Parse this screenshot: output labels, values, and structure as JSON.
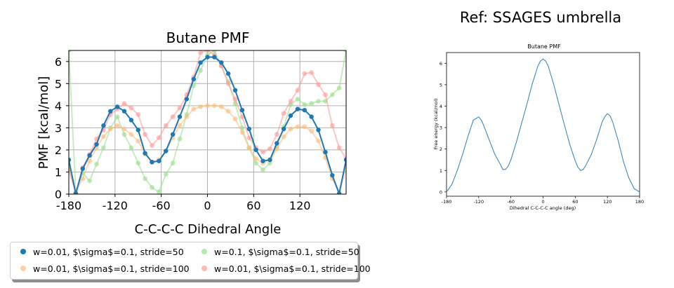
{
  "main_title": "Ref: SSAGES umbrella",
  "chart_data": [
    {
      "type": "line",
      "title": "Butane PMF",
      "xlabel": "C-C-C-C Dihedral Angle",
      "ylabel": "PMF [kcal/mol]",
      "xlim": [
        -180,
        180
      ],
      "ylim": [
        0,
        6.5
      ],
      "xticks": [
        -180,
        -120,
        -60,
        0,
        60,
        120
      ],
      "xtick_labels": [
        "-180",
        "-120",
        "-60",
        "0",
        "60",
        "120"
      ],
      "yticks": [
        0,
        1,
        2,
        3,
        4,
        5,
        6
      ],
      "grid": true,
      "legend_position": "below",
      "x": [
        -180,
        -171,
        -162,
        -153,
        -144,
        -135,
        -126,
        -117,
        -108,
        -99,
        -90,
        -81,
        -72,
        -63,
        -54,
        -45,
        -36,
        -27,
        -18,
        -9,
        0,
        9,
        18,
        27,
        36,
        45,
        54,
        63,
        72,
        81,
        90,
        99,
        108,
        117,
        126,
        135,
        144,
        153,
        162,
        171,
        180
      ],
      "series": [
        {
          "name": "w=0.01, $\\sigma$=0.1, stride=50",
          "color": "#1f77b4",
          "alpha": 1.0,
          "line": true,
          "values": [
            1.55,
            0.02,
            1.15,
            1.75,
            2.25,
            3.1,
            3.75,
            3.95,
            3.75,
            3.35,
            2.9,
            1.85,
            1.45,
            1.5,
            1.95,
            2.7,
            3.5,
            4.3,
            5.2,
            5.95,
            6.2,
            6.2,
            5.95,
            5.45,
            4.7,
            3.8,
            2.95,
            2.0,
            1.5,
            1.55,
            2.3,
            2.95,
            3.55,
            3.85,
            3.8,
            3.5,
            2.9,
            1.9,
            0.85,
            0.02,
            1.55
          ]
        },
        {
          "name": "w=0.01, $\\sigma$=0.1, stride=100",
          "color": "#ffbb78",
          "alpha": 0.75,
          "line": true,
          "values": [
            1.2,
            0.1,
            0.7,
            1.5,
            2.1,
            2.6,
            2.95,
            3.1,
            2.95,
            2.7,
            2.4,
            1.8,
            1.45,
            1.55,
            1.95,
            2.55,
            3.1,
            3.5,
            3.85,
            3.95,
            4.0,
            4.0,
            3.95,
            3.75,
            3.4,
            2.8,
            2.1,
            1.6,
            1.4,
            1.55,
            2.05,
            2.6,
            2.95,
            3.05,
            3.05,
            2.85,
            2.4,
            1.65,
            0.7,
            0.1,
            1.15
          ]
        },
        {
          "name": "w=0.1, $\\sigma$=0.1, stride=50",
          "color": "#98df8a",
          "alpha": 0.65,
          "line": true,
          "values": [
            6.5,
            0.05,
            0.95,
            0.6,
            1.35,
            2.1,
            3.0,
            3.5,
            2.7,
            2.1,
            1.4,
            0.7,
            0.3,
            0.1,
            0.9,
            1.4,
            2.5,
            3.6,
            4.9,
            5.6,
            6.3,
            6.5,
            5.8,
            5.1,
            4.1,
            3.0,
            2.1,
            1.4,
            1.1,
            1.4,
            2.15,
            3.05,
            4.05,
            4.3,
            4.05,
            4.1,
            4.2,
            4.2,
            4.5,
            4.8,
            6.5
          ]
        },
        {
          "name": "w=0.01, $\\sigma$=0.1, stride=100",
          "color": "#ff9896",
          "alpha": 0.75,
          "line": true,
          "values": [
            1.1,
            0.05,
            1.2,
            1.8,
            2.5,
            2.9,
            3.6,
            3.85,
            4.1,
            3.9,
            3.6,
            2.7,
            2.2,
            2.55,
            3.1,
            3.5,
            3.9,
            4.5,
            5.3,
            6.4,
            6.5,
            6.3,
            5.8,
            5.0,
            4.3,
            3.5,
            2.55,
            2.1,
            1.9,
            2.05,
            2.7,
            3.65,
            4.2,
            4.7,
            5.45,
            5.5,
            4.95,
            4.5,
            3.1,
            2.1,
            1.6
          ]
        }
      ]
    },
    {
      "type": "line",
      "title": "Butane PMF",
      "xlabel": "Dihedral C-C-C-C angle (deg)",
      "ylabel": "Free energy (kcal/mol)",
      "xlim": [
        -180,
        180
      ],
      "ylim": [
        -0.2,
        6.5
      ],
      "xticks": [
        -180,
        -120,
        -60,
        0,
        60,
        120,
        180
      ],
      "xtick_labels": [
        "-180",
        "-120",
        "-60",
        "0",
        "60",
        "120",
        "180"
      ],
      "yticks": [
        0,
        1,
        2,
        3,
        4,
        5,
        6
      ],
      "grid": false,
      "x": [
        -180,
        -170,
        -160,
        -150,
        -140,
        -130,
        -120,
        -115,
        -110,
        -100,
        -90,
        -80,
        -75,
        -70,
        -65,
        -60,
        -50,
        -40,
        -30,
        -20,
        -10,
        -5,
        0,
        5,
        10,
        20,
        30,
        40,
        50,
        60,
        65,
        70,
        75,
        80,
        90,
        100,
        110,
        115,
        120,
        125,
        130,
        140,
        150,
        160,
        170,
        180
      ],
      "series": [
        {
          "color": "#3b8bc2",
          "values": [
            0.0,
            0.35,
            1.0,
            1.75,
            2.6,
            3.35,
            3.5,
            3.35,
            3.05,
            2.4,
            1.75,
            1.3,
            1.05,
            1.05,
            1.2,
            1.5,
            2.3,
            3.2,
            4.1,
            5.05,
            5.85,
            6.1,
            6.2,
            6.1,
            5.85,
            5.0,
            4.05,
            3.1,
            2.2,
            1.45,
            1.15,
            1.0,
            1.05,
            1.25,
            1.75,
            2.45,
            3.25,
            3.5,
            3.65,
            3.55,
            3.25,
            2.4,
            1.4,
            0.65,
            0.15,
            0.0
          ]
        }
      ]
    }
  ]
}
